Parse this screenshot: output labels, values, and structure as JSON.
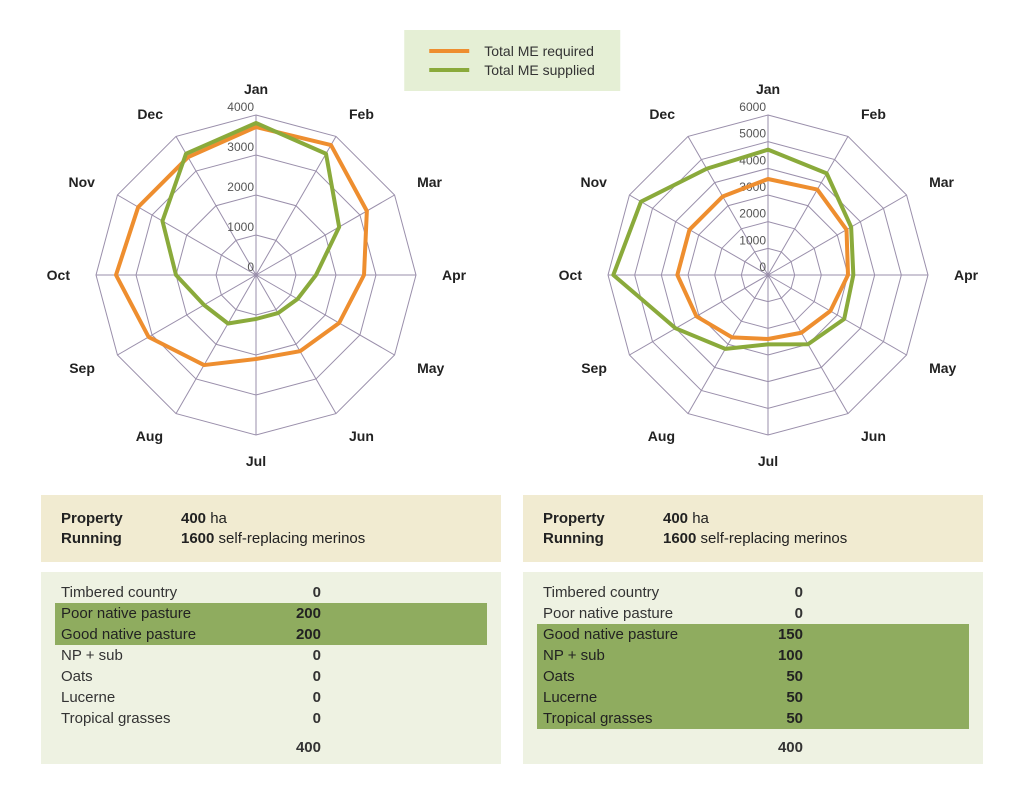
{
  "legend": {
    "bg": "#e5efd5",
    "items": [
      {
        "label": "Total ME required",
        "color": "#ee8e2f"
      },
      {
        "label": "Total ME supplied",
        "color": "#8aaa3b"
      }
    ]
  },
  "months": [
    "Jan",
    "Feb",
    "Mar",
    "Apr",
    "May",
    "Jun",
    "Jul",
    "Aug",
    "Sep",
    "Oct",
    "Nov",
    "Dec"
  ],
  "radar_common": {
    "grid_color": "#9a8fab",
    "series_stroke_width": 4,
    "axis_label_fontsize": 14,
    "tick_label_fontsize": 12,
    "background_color": "#ffffff"
  },
  "charts": [
    {
      "max": 4000,
      "ticks": [
        0,
        1000,
        2000,
        3000,
        4000
      ],
      "series": [
        {
          "name": "Total ME required",
          "color": "#ee8e2f",
          "values": [
            3700,
            3750,
            3200,
            2700,
            2400,
            2200,
            2100,
            2600,
            3100,
            3500,
            3400,
            3400
          ]
        },
        {
          "name": "Total ME supplied",
          "color": "#8aaa3b",
          "values": [
            3800,
            3500,
            2400,
            1500,
            1200,
            1100,
            1100,
            1400,
            1500,
            2000,
            2700,
            3500
          ]
        }
      ]
    },
    {
      "max": 6000,
      "ticks": [
        0,
        1000,
        2000,
        3000,
        4000,
        5000,
        6000
      ],
      "series": [
        {
          "name": "Total ME required",
          "color": "#ee8e2f",
          "values": [
            3600,
            3700,
            3400,
            3000,
            2700,
            2500,
            2400,
            2700,
            3100,
            3400,
            3400,
            3400
          ]
        },
        {
          "name": "Total ME supplied",
          "color": "#8aaa3b",
          "values": [
            4700,
            4400,
            3600,
            3200,
            3300,
            3000,
            2600,
            3200,
            4000,
            5800,
            5500,
            4600
          ]
        }
      ]
    }
  ],
  "property": {
    "label_property": "Property",
    "property_value": "400",
    "property_unit": "ha",
    "label_running": "Running",
    "running_value": "1600",
    "running_unit": "self-replacing merinos"
  },
  "land_tables": [
    {
      "rows": [
        {
          "label": "Timbered country",
          "value": "0",
          "hl": false
        },
        {
          "label": "Poor native pasture",
          "value": "200",
          "hl": true
        },
        {
          "label": "Good native pasture",
          "value": "200",
          "hl": true
        },
        {
          "label": "NP + sub",
          "value": "0",
          "hl": false
        },
        {
          "label": "Oats",
          "value": "0",
          "hl": false
        },
        {
          "label": "Lucerne",
          "value": "0",
          "hl": false
        },
        {
          "label": "Tropical grasses",
          "value": "0",
          "hl": false
        }
      ],
      "total": "400"
    },
    {
      "rows": [
        {
          "label": "Timbered country",
          "value": "0",
          "hl": false
        },
        {
          "label": "Poor native pasture",
          "value": "0",
          "hl": false
        },
        {
          "label": "Good native pasture",
          "value": "150",
          "hl": true
        },
        {
          "label": "NP + sub",
          "value": "100",
          "hl": true
        },
        {
          "label": "Oats",
          "value": "50",
          "hl": true
        },
        {
          "label": "Lucerne",
          "value": "50",
          "hl": true
        },
        {
          "label": "Tropical grasses",
          "value": "50",
          "hl": true
        }
      ],
      "total": "400"
    }
  ],
  "colors": {
    "prop_bg": "#f1ebd1",
    "land_bg": "#eef2e2",
    "highlight_bg": "#8fac5f"
  }
}
